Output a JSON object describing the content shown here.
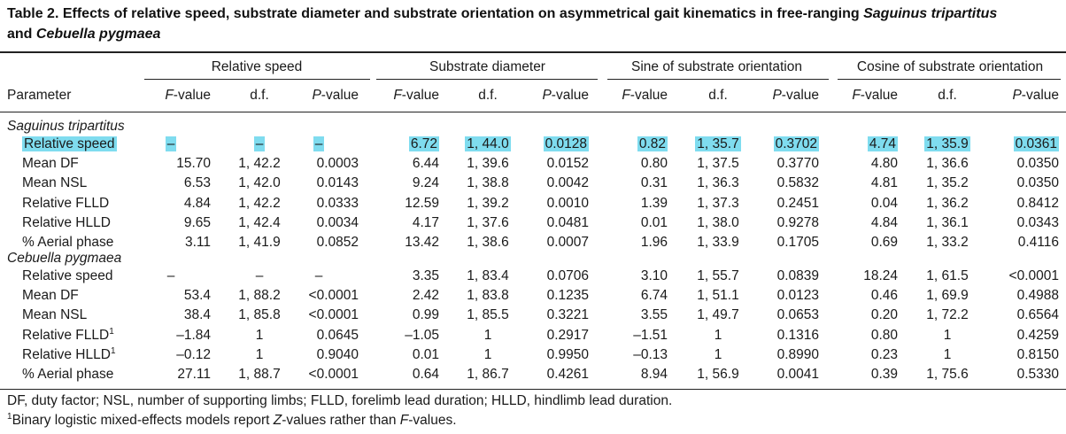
{
  "title": {
    "main": "Table 2. Effects of relative speed, substrate diameter and substrate orientation on asymmetrical gait kinematics in free-ranging ",
    "species1": "Saguinus tripartitus",
    "and": "and",
    "species2": "Cebuella pygmaea"
  },
  "groups": [
    "Relative speed",
    "Substrate diameter",
    "Sine of substrate orientation",
    "Cosine of substrate orientation"
  ],
  "columns": {
    "parameter": "Parameter",
    "f_italic": "F",
    "f_suffix": "-value",
    "df": "d.f.",
    "p_italic": "P",
    "p_suffix": "-value"
  },
  "sections": [
    {
      "name": "Saguinus tripartitus",
      "rows": [
        {
          "label": "Relative speed",
          "sup": "",
          "values": [
            "–",
            "–",
            "–",
            "6.72",
            "1, 44.0",
            "0.0128",
            "0.82",
            "1, 35.7",
            "0.3702",
            "4.74",
            "1, 35.9",
            "0.0361"
          ]
        },
        {
          "label": "Mean DF",
          "sup": "",
          "values": [
            "15.70",
            "1, 42.2",
            "0.0003",
            "6.44",
            "1, 39.6",
            "0.0152",
            "0.80",
            "1, 37.5",
            "0.3770",
            "4.80",
            "1, 36.6",
            "0.0350"
          ]
        },
        {
          "label": "Mean NSL",
          "sup": "",
          "values": [
            "6.53",
            "1, 42.0",
            "0.0143",
            "9.24",
            "1, 38.8",
            "0.0042",
            "0.31",
            "1, 36.3",
            "0.5832",
            "4.81",
            "1, 35.2",
            "0.0350"
          ]
        },
        {
          "label": "Relative FLLD",
          "sup": "",
          "values": [
            "4.84",
            "1, 42.2",
            "0.0333",
            "12.59",
            "1, 39.2",
            "0.0010",
            "1.39",
            "1, 37.3",
            "0.2451",
            "0.04",
            "1, 36.2",
            "0.8412"
          ]
        },
        {
          "label": "Relative HLLD",
          "sup": "",
          "values": [
            "9.65",
            "1, 42.4",
            "0.0034",
            "4.17",
            "1, 37.6",
            "0.0481",
            "0.01",
            "1, 38.0",
            "0.9278",
            "4.84",
            "1, 36.1",
            "0.0343"
          ]
        },
        {
          "label": "% Aerial phase",
          "sup": "",
          "values": [
            "3.11",
            "1, 41.9",
            "0.0852",
            "13.42",
            "1, 38.6",
            "0.0007",
            "1.96",
            "1, 33.9",
            "0.1705",
            "0.69",
            "1, 33.2",
            "0.4116"
          ]
        }
      ]
    },
    {
      "name": "Cebuella pygmaea",
      "rows": [
        {
          "label": "Relative speed",
          "sup": "",
          "values": [
            "–",
            "–",
            "–",
            "3.35",
            "1, 83.4",
            "0.0706",
            "3.10",
            "1, 55.7",
            "0.0839",
            "18.24",
            "1, 61.5",
            "<0.0001"
          ]
        },
        {
          "label": "Mean DF",
          "sup": "",
          "values": [
            "53.4",
            "1, 88.2",
            "<0.0001",
            "2.42",
            "1, 83.8",
            "0.1235",
            "6.74",
            "1, 51.1",
            "0.0123",
            "0.46",
            "1, 69.9",
            "0.4988"
          ]
        },
        {
          "label": "Mean NSL",
          "sup": "",
          "values": [
            "38.4",
            "1, 85.8",
            "<0.0001",
            "0.99",
            "1, 85.5",
            "0.3221",
            "3.55",
            "1, 49.7",
            "0.0653",
            "0.20",
            "1, 72.2",
            "0.6564"
          ]
        },
        {
          "label": "Relative FLLD",
          "sup": "1",
          "values": [
            "–1.84",
            "1",
            "0.0645",
            "–1.05",
            "1",
            "0.2917",
            "–1.51",
            "1",
            "0.1316",
            "0.80",
            "1",
            "0.4259"
          ]
        },
        {
          "label": "Relative HLLD",
          "sup": "1",
          "values": [
            "–0.12",
            "1",
            "0.9040",
            "0.01",
            "1",
            "0.9950",
            "–0.13",
            "1",
            "0.8990",
            "0.23",
            "1",
            "0.8150"
          ]
        },
        {
          "label": "% Aerial phase",
          "sup": "",
          "values": [
            "27.11",
            "1, 88.7",
            "<0.0001",
            "0.64",
            "1, 86.7",
            "0.4261",
            "8.94",
            "1, 56.9",
            "0.0041",
            "0.39",
            "1, 75.6",
            "0.5330"
          ]
        }
      ]
    }
  ],
  "footnotes": {
    "abbreviations": "DF, duty factor; NSL, number of supporting limbs; FLLD, forelimb lead duration; HLLD, hindlimb lead duration.",
    "sup": "1",
    "note_a": "Binary logistic mixed-effects models report ",
    "note_z": "Z",
    "note_b": "-values rather than ",
    "note_f": "F",
    "note_c": "-values."
  },
  "highlight_color": "#7fdcef"
}
